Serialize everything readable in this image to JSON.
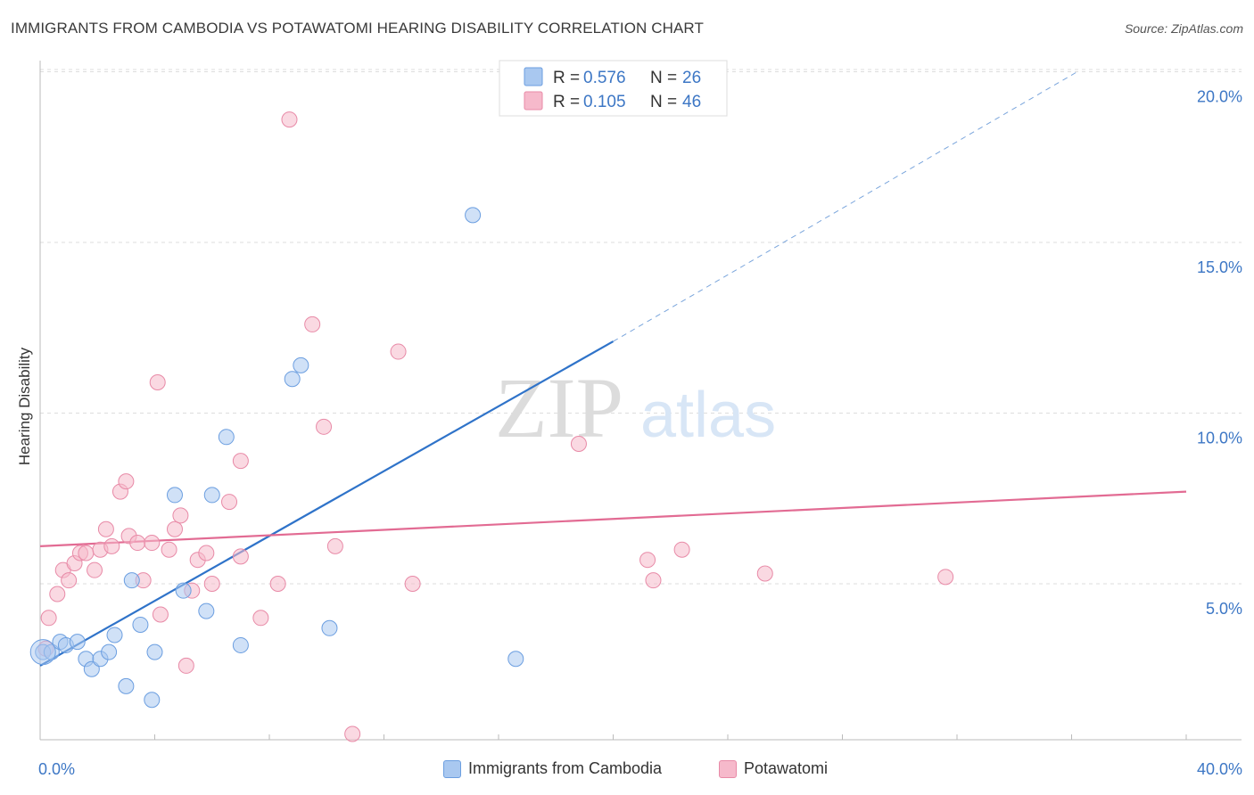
{
  "header": {
    "title": "IMMIGRANTS FROM CAMBODIA VS POTAWATOMI HEARING DISABILITY CORRELATION CHART",
    "source": "Source: ZipAtlas.com"
  },
  "watermark": {
    "zip": "ZIP",
    "atlas": "atlas"
  },
  "colors": {
    "blue_fill": "#a9c8f0",
    "blue_line": "#2f73c9",
    "pink_fill": "#f6b9cb",
    "pink_line": "#e26b93",
    "tick_label": "#3d77c5",
    "grid": "#dddddd"
  },
  "chart_data": {
    "type": "scatter",
    "title": "IMMIGRANTS FROM CAMBODIA VS POTAWATOMI HEARING DISABILITY CORRELATION CHART",
    "xlabel": "",
    "ylabel": "Hearing Disability",
    "xlim": [
      0,
      40
    ],
    "ylim": [
      0,
      20.5
    ],
    "x_tick_labels": {
      "min": "0.0%",
      "max": "40.0%"
    },
    "y_ticks": [
      5,
      10,
      15,
      20
    ],
    "y_tick_labels": [
      "5.0%",
      "10.0%",
      "15.0%",
      "20.0%"
    ],
    "grid": "horizontal dashed",
    "stats_legend": {
      "placement": "top-center",
      "rows": [
        {
          "r_label": "R = ",
          "r_value": "0.576",
          "n_label": "N = ",
          "n_value": "26"
        },
        {
          "r_label": "R = ",
          "r_value": "0.105",
          "n_label": "N = ",
          "n_value": "46"
        }
      ]
    },
    "series": [
      {
        "name": "Immigrants from Cambodia",
        "color": "#a9c8f0",
        "points": [
          [
            0.1,
            3.0
          ],
          [
            0.4,
            3.0
          ],
          [
            0.7,
            3.3
          ],
          [
            0.9,
            3.2
          ],
          [
            1.3,
            3.3
          ],
          [
            1.6,
            2.8
          ],
          [
            1.8,
            2.5
          ],
          [
            2.1,
            2.8
          ],
          [
            2.4,
            3.0
          ],
          [
            2.6,
            3.5
          ],
          [
            3.0,
            2.0
          ],
          [
            3.2,
            5.1
          ],
          [
            3.5,
            3.8
          ],
          [
            3.9,
            1.6
          ],
          [
            4.0,
            3.0
          ],
          [
            4.7,
            7.6
          ],
          [
            5.0,
            4.8
          ],
          [
            5.8,
            4.2
          ],
          [
            6.0,
            7.6
          ],
          [
            6.5,
            9.3
          ],
          [
            7.0,
            3.2
          ],
          [
            8.8,
            11.0
          ],
          [
            9.1,
            11.4
          ],
          [
            10.1,
            3.7
          ],
          [
            15.1,
            15.8
          ],
          [
            16.6,
            2.8
          ]
        ],
        "trend": {
          "x": [
            0,
            20
          ],
          "y": [
            2.6,
            12.1
          ]
        },
        "trend_extension": {
          "x": [
            20,
            36.2
          ],
          "y": [
            12.1,
            20.0
          ]
        }
      },
      {
        "name": "Potawatomi",
        "color": "#f6b9cb",
        "points": [
          [
            0.2,
            3.1
          ],
          [
            0.3,
            4.0
          ],
          [
            0.6,
            4.7
          ],
          [
            0.8,
            5.4
          ],
          [
            1.0,
            5.1
          ],
          [
            1.2,
            5.6
          ],
          [
            1.4,
            5.9
          ],
          [
            1.6,
            5.9
          ],
          [
            1.9,
            5.4
          ],
          [
            2.1,
            6.0
          ],
          [
            2.3,
            6.6
          ],
          [
            2.5,
            6.1
          ],
          [
            2.8,
            7.7
          ],
          [
            3.0,
            8.0
          ],
          [
            3.1,
            6.4
          ],
          [
            3.4,
            6.2
          ],
          [
            3.6,
            5.1
          ],
          [
            3.9,
            6.2
          ],
          [
            4.1,
            10.9
          ],
          [
            4.2,
            4.1
          ],
          [
            4.5,
            6.0
          ],
          [
            4.7,
            6.6
          ],
          [
            4.9,
            7.0
          ],
          [
            5.1,
            2.6
          ],
          [
            5.3,
            4.8
          ],
          [
            5.5,
            5.7
          ],
          [
            5.8,
            5.9
          ],
          [
            6.0,
            5.0
          ],
          [
            6.6,
            7.4
          ],
          [
            7.0,
            8.6
          ],
          [
            7.0,
            5.8
          ],
          [
            7.7,
            4.0
          ],
          [
            8.3,
            5.0
          ],
          [
            8.7,
            18.6
          ],
          [
            9.5,
            12.6
          ],
          [
            9.9,
            9.6
          ],
          [
            10.3,
            6.1
          ],
          [
            10.9,
            0.6
          ],
          [
            12.5,
            11.8
          ],
          [
            13.0,
            5.0
          ],
          [
            18.8,
            9.1
          ],
          [
            21.2,
            5.7
          ],
          [
            21.4,
            5.1
          ],
          [
            22.4,
            6.0
          ],
          [
            25.3,
            5.3
          ],
          [
            31.6,
            5.2
          ]
        ],
        "trend": {
          "x": [
            0,
            40
          ],
          "y": [
            6.1,
            7.7
          ]
        }
      }
    ]
  }
}
